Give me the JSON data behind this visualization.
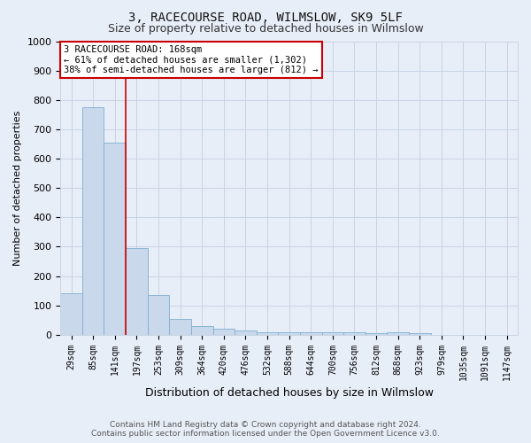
{
  "title1": "3, RACECOURSE ROAD, WILMSLOW, SK9 5LF",
  "title2": "Size of property relative to detached houses in Wilmslow",
  "xlabel": "Distribution of detached houses by size in Wilmslow",
  "ylabel": "Number of detached properties",
  "footer1": "Contains HM Land Registry data © Crown copyright and database right 2024.",
  "footer2": "Contains public sector information licensed under the Open Government Licence v3.0.",
  "annotation_line1": "3 RACECOURSE ROAD: 168sqm",
  "annotation_line2": "← 61% of detached houses are smaller (1,302)",
  "annotation_line3": "38% of semi-detached houses are larger (812) →",
  "bar_labels": [
    "29sqm",
    "85sqm",
    "141sqm",
    "197sqm",
    "253sqm",
    "309sqm",
    "364sqm",
    "420sqm",
    "476sqm",
    "532sqm",
    "588sqm",
    "644sqm",
    "700sqm",
    "756sqm",
    "812sqm",
    "868sqm",
    "923sqm",
    "979sqm",
    "1035sqm",
    "1091sqm",
    "1147sqm"
  ],
  "bar_values": [
    140,
    775,
    655,
    295,
    135,
    55,
    30,
    20,
    15,
    10,
    10,
    10,
    10,
    10,
    5,
    10,
    5,
    0,
    0,
    0,
    0
  ],
  "bar_color": "#c9d9eb",
  "bar_edge_color": "#7fafd0",
  "red_line_x": 2.5,
  "red_line_color": "#cc0000",
  "ylim": [
    0,
    1000
  ],
  "yticks": [
    0,
    100,
    200,
    300,
    400,
    500,
    600,
    700,
    800,
    900,
    1000
  ],
  "annotation_box_color": "#ffffff",
  "annotation_box_edge": "#cc0000",
  "grid_color": "#c8d4e4",
  "bg_color": "#e8eef8",
  "title1_fontsize": 10,
  "title2_fontsize": 9,
  "ylabel_fontsize": 8,
  "xlabel_fontsize": 9,
  "tick_fontsize": 7,
  "footer_fontsize": 6.5,
  "annot_fontsize": 7.5
}
